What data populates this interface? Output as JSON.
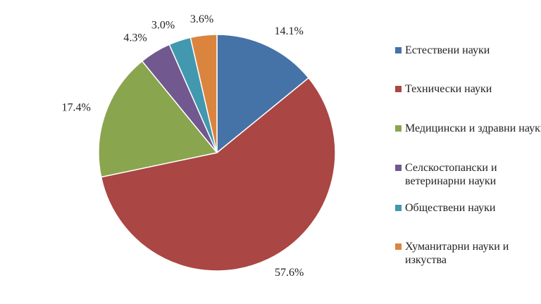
{
  "chart_data": {
    "type": "pie",
    "categories": [
      "Естествени науки",
      "Технически науки",
      "Медицински и здравни науки",
      "Селскостопански и ветеринарни науки",
      "Обществени науки",
      "Хуманитарни науки и изкуства"
    ],
    "values": [
      14.1,
      57.6,
      17.4,
      4.3,
      3.0,
      3.6
    ],
    "value_labels": [
      "14.1%",
      "57.6%",
      "17.4%",
      "4.3%",
      "3.0%",
      "3.6%"
    ],
    "colors": [
      "#4572a7",
      "#aa4643",
      "#89a54e",
      "#71588f",
      "#4198af",
      "#db843d"
    ],
    "legend": "right"
  }
}
